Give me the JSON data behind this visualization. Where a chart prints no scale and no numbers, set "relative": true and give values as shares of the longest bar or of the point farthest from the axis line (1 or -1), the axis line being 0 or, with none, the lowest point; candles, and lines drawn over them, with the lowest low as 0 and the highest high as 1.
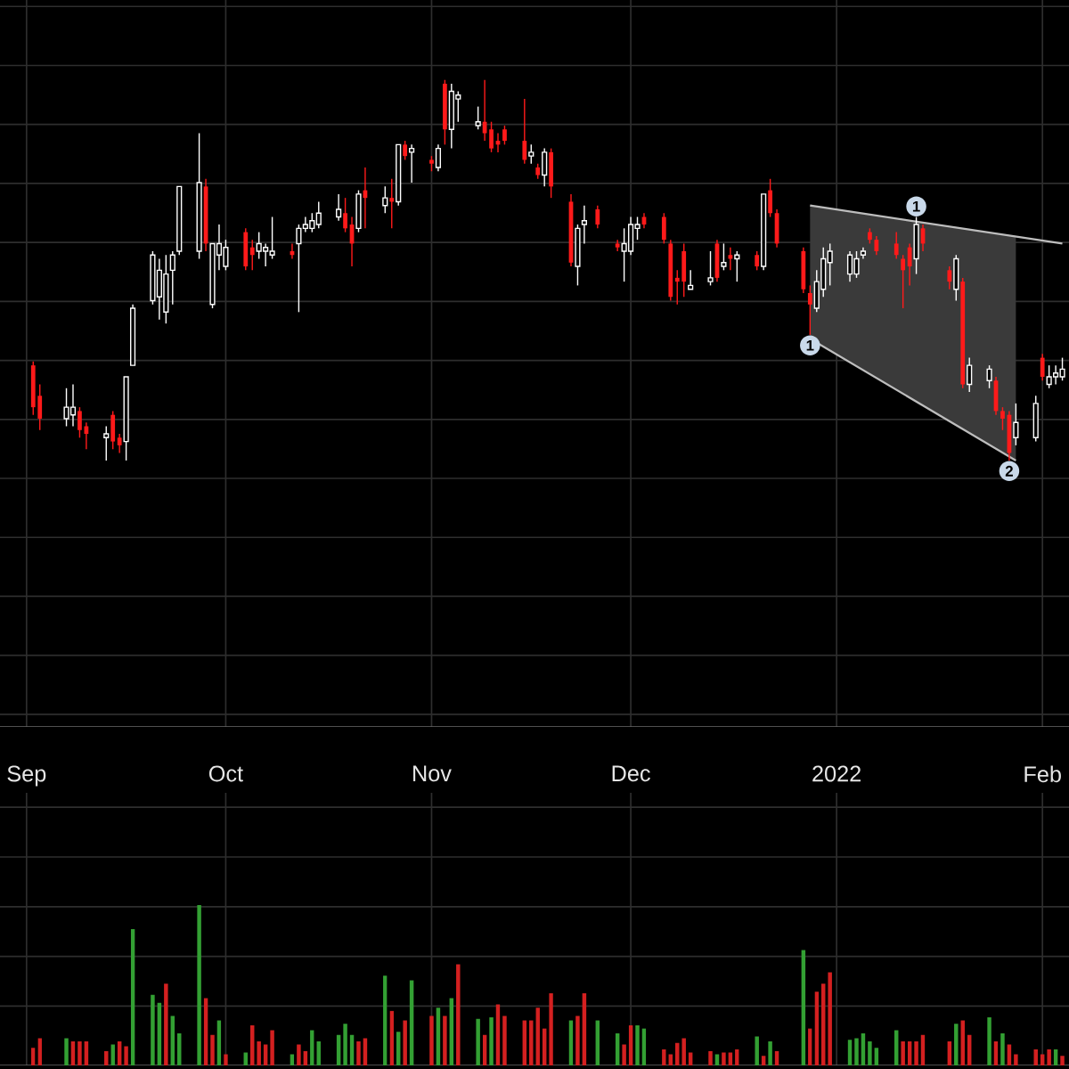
{
  "chart_data": [
    {
      "type": "candlestick",
      "relative": true,
      "grid": true,
      "tick_labels": "x",
      "x": [
        "2021-09-02",
        "2021-09-03",
        "2021-09-07",
        "2021-09-08",
        "2021-09-09",
        "2021-09-10",
        "2021-09-13",
        "2021-09-14",
        "2021-09-15",
        "2021-09-16",
        "2021-09-17",
        "2021-09-20",
        "2021-09-21",
        "2021-09-22",
        "2021-09-23",
        "2021-09-24",
        "2021-09-27",
        "2021-09-28",
        "2021-09-29",
        "2021-09-30",
        "2021-10-01",
        "2021-10-04",
        "2021-10-05",
        "2021-10-06",
        "2021-10-07",
        "2021-10-08",
        "2021-10-11",
        "2021-10-12",
        "2021-10-13",
        "2021-10-14",
        "2021-10-15",
        "2021-10-18",
        "2021-10-19",
        "2021-10-20",
        "2021-10-21",
        "2021-10-22",
        "2021-10-25",
        "2021-10-26",
        "2021-10-27",
        "2021-10-28",
        "2021-10-29",
        "2021-11-01",
        "2021-11-02",
        "2021-11-03",
        "2021-11-04",
        "2021-11-05",
        "2021-11-08",
        "2021-11-09",
        "2021-11-10",
        "2021-11-11",
        "2021-11-12",
        "2021-11-15",
        "2021-11-16",
        "2021-11-17",
        "2021-11-18",
        "2021-11-19",
        "2021-11-22",
        "2021-11-23",
        "2021-11-24",
        "2021-11-26",
        "2021-11-29",
        "2021-11-30",
        "2021-12-01",
        "2021-12-02",
        "2021-12-03",
        "2021-12-06",
        "2021-12-07",
        "2021-12-08",
        "2021-12-09",
        "2021-12-10",
        "2021-12-13",
        "2021-12-14",
        "2021-12-15",
        "2021-12-16",
        "2021-12-17",
        "2021-12-20",
        "2021-12-21",
        "2021-12-22",
        "2021-12-23",
        "2021-12-27",
        "2021-12-28",
        "2021-12-29",
        "2021-12-30",
        "2021-12-31",
        "2022-01-03",
        "2022-01-04",
        "2022-01-05",
        "2022-01-06",
        "2022-01-07",
        "2022-01-10",
        "2022-01-11",
        "2022-01-12",
        "2022-01-13",
        "2022-01-14",
        "2022-01-18",
        "2022-01-19",
        "2022-01-20",
        "2022-01-21",
        "2022-01-24",
        "2022-01-25",
        "2022-01-26",
        "2022-01-27",
        "2022-01-28",
        "2022-01-31",
        "2022-02-01",
        "2022-02-02",
        "2022-02-03",
        "2022-02-04"
      ],
      "xlim": [
        "2021-08-28",
        "2022-02-05"
      ],
      "xticks": [
        {
          "value": "2021-09-01",
          "label": "Sep"
        },
        {
          "value": "2021-10-01",
          "label": "Oct"
        },
        {
          "value": "2021-11-01",
          "label": "Nov"
        },
        {
          "value": "2021-12-01",
          "label": "Dec"
        },
        {
          "value": "2022-01-01",
          "label": "2022"
        },
        {
          "value": "2022-02-01",
          "label": "Feb"
        }
      ],
      "ohlc": [
        [
          0.25,
          0.26,
          0.12,
          0.14
        ],
        [
          0.17,
          0.2,
          0.08,
          0.11
        ],
        [
          0.11,
          0.19,
          0.09,
          0.14
        ],
        [
          0.12,
          0.2,
          0.09,
          0.14
        ],
        [
          0.13,
          0.14,
          0.06,
          0.08
        ],
        [
          0.09,
          0.1,
          0.03,
          0.07
        ],
        [
          0.06,
          0.09,
          0,
          0.07
        ],
        [
          0.12,
          0.13,
          0.03,
          0.05
        ],
        [
          0.06,
          0.07,
          0.02,
          0.04
        ],
        [
          0.05,
          0.22,
          0,
          0.22
        ],
        [
          0.25,
          0.41,
          0.25,
          0.4
        ],
        [
          0.42,
          0.55,
          0.41,
          0.54
        ],
        [
          0.43,
          0.53,
          0.37,
          0.5
        ],
        [
          0.39,
          0.54,
          0.36,
          0.49
        ],
        [
          0.5,
          0.55,
          0.41,
          0.54
        ],
        [
          0.55,
          0.72,
          0.54,
          0.72
        ],
        [
          0.55,
          0.86,
          0.53,
          0.73
        ],
        [
          0.72,
          0.74,
          0.55,
          0.57
        ],
        [
          0.41,
          0.57,
          0.4,
          0.57
        ],
        [
          0.54,
          0.62,
          0.5,
          0.57
        ],
        [
          0.51,
          0.58,
          0.5,
          0.56
        ],
        [
          0.6,
          0.61,
          0.5,
          0.51
        ],
        [
          0.56,
          0.58,
          0.5,
          0.54
        ],
        [
          0.55,
          0.6,
          0.53,
          0.57
        ],
        [
          0.55,
          0.57,
          0.51,
          0.56
        ],
        [
          0.54,
          0.64,
          0.53,
          0.55
        ],
        [
          0.55,
          0.57,
          0.53,
          0.54
        ],
        [
          0.57,
          0.62,
          0.39,
          0.61
        ],
        [
          0.61,
          0.64,
          0.6,
          0.62
        ],
        [
          0.61,
          0.65,
          0.6,
          0.63
        ],
        [
          0.62,
          0.68,
          0.61,
          0.65
        ],
        [
          0.64,
          0.7,
          0.63,
          0.66
        ],
        [
          0.65,
          0.69,
          0.6,
          0.61
        ],
        [
          0.62,
          0.64,
          0.51,
          0.57
        ],
        [
          0.61,
          0.71,
          0.6,
          0.7
        ],
        [
          0.71,
          0.77,
          0.61,
          0.69
        ],
        [
          0.67,
          0.72,
          0.65,
          0.69
        ],
        [
          0.69,
          0.74,
          0.61,
          0.68
        ],
        [
          0.68,
          0.83,
          0.67,
          0.83
        ],
        [
          0.83,
          0.84,
          0.79,
          0.8
        ],
        [
          0.81,
          0.83,
          0.73,
          0.82
        ],
        [
          0.79,
          0.8,
          0.76,
          0.78
        ],
        [
          0.77,
          0.83,
          0.76,
          0.82
        ],
        [
          0.99,
          1,
          0.83,
          0.87
        ],
        [
          0.87,
          0.99,
          0.82,
          0.97
        ],
        [
          0.95,
          0.97,
          0.89,
          0.96
        ],
        [
          0.88,
          0.93,
          0.87,
          0.89
        ],
        [
          0.89,
          1,
          0.84,
          0.86
        ],
        [
          0.87,
          0.89,
          0.81,
          0.82
        ],
        [
          0.84,
          0.86,
          0.81,
          0.83
        ],
        [
          0.87,
          0.88,
          0.83,
          0.84
        ],
        [
          0.84,
          0.95,
          0.78,
          0.79
        ],
        [
          0.8,
          0.83,
          0.78,
          0.81
        ],
        [
          0.77,
          0.78,
          0.74,
          0.75
        ],
        [
          0.75,
          0.82,
          0.72,
          0.81
        ],
        [
          0.81,
          0.82,
          0.69,
          0.72
        ],
        [
          0.68,
          0.7,
          0.51,
          0.52
        ],
        [
          0.51,
          0.62,
          0.46,
          0.61
        ],
        [
          0.62,
          0.67,
          0.57,
          0.63
        ],
        [
          0.66,
          0.67,
          0.61,
          0.62
        ],
        [
          0.57,
          0.58,
          0.55,
          0.56
        ],
        [
          0.55,
          0.61,
          0.47,
          0.57
        ],
        [
          0.55,
          0.64,
          0.54,
          0.62
        ],
        [
          0.61,
          0.64,
          0.58,
          0.62
        ],
        [
          0.64,
          0.65,
          0.61,
          0.62
        ],
        [
          0.64,
          0.65,
          0.57,
          0.58
        ],
        [
          0.57,
          0.58,
          0.42,
          0.43
        ],
        [
          0.48,
          0.5,
          0.41,
          0.47
        ],
        [
          0.55,
          0.57,
          0.43,
          0.47
        ],
        [
          0.45,
          0.5,
          0.45,
          0.46
        ],
        [
          0.47,
          0.55,
          0.46,
          0.48
        ],
        [
          0.57,
          0.58,
          0.47,
          0.48
        ],
        [
          0.51,
          0.57,
          0.5,
          0.52
        ],
        [
          0.54,
          0.56,
          0.5,
          0.53
        ],
        [
          0.53,
          0.55,
          0.47,
          0.54
        ],
        [
          0.54,
          0.55,
          0.5,
          0.51
        ],
        [
          0.51,
          0.7,
          0.5,
          0.7
        ],
        [
          0.71,
          0.74,
          0.64,
          0.65
        ],
        [
          0.65,
          0.66,
          0.56,
          0.57
        ],
        [
          0.55,
          0.56,
          0.44,
          0.45
        ],
        [
          0.44,
          0.46,
          0.33,
          0.41
        ],
        [
          0.4,
          0.5,
          0.39,
          0.47
        ],
        [
          0.45,
          0.56,
          0.43,
          0.53
        ],
        [
          0.52,
          0.57,
          0.46,
          0.55
        ],
        [
          0.49,
          0.55,
          0.47,
          0.54
        ],
        [
          0.49,
          0.55,
          0.48,
          0.53
        ],
        [
          0.54,
          0.56,
          0.53,
          0.55
        ],
        [
          0.6,
          0.61,
          0.57,
          0.58
        ],
        [
          0.58,
          0.59,
          0.54,
          0.55
        ],
        [
          0.57,
          0.6,
          0.53,
          0.54
        ],
        [
          0.53,
          0.54,
          0.4,
          0.5
        ],
        [
          0.56,
          0.57,
          0.46,
          0.51
        ],
        [
          0.53,
          0.64,
          0.49,
          0.62
        ],
        [
          0.61,
          0.62,
          0.55,
          0.57
        ],
        [
          0.5,
          0.51,
          0.45,
          0.47
        ],
        [
          0.45,
          0.54,
          0.42,
          0.53
        ],
        [
          0.47,
          0.48,
          0.19,
          0.2
        ],
        [
          0.2,
          0.27,
          0.18,
          0.25
        ],
        [
          0.21,
          0.25,
          0.19,
          0.24
        ],
        [
          0.21,
          0.22,
          0.12,
          0.13
        ],
        [
          0.13,
          0.14,
          0.08,
          0.11
        ],
        [
          0.12,
          0.13,
          0,
          0.02
        ],
        [
          0.06,
          0.15,
          0.04,
          0.1
        ],
        [
          0.06,
          0.17,
          0.05,
          0.15
        ],
        [
          0.27,
          0.28,
          0.21,
          0.22
        ],
        [
          0.2,
          0.25,
          0.19,
          0.22
        ],
        [
          0.22,
          0.25,
          0.2,
          0.23
        ],
        [
          0.22,
          0.27,
          0.21,
          0.24
        ]
      ],
      "series": [
        {
          "type": "line",
          "color": "#bdbdbd",
          "x": [
            "2021-12-28",
            "2022-02-04"
          ],
          "values": [
            0.67,
            0.57
          ]
        },
        {
          "type": "line",
          "color": "#bdbdbd",
          "x": [
            "2021-12-28",
            "2022-01-28"
          ],
          "values": [
            0.32,
            0
          ],
          "lower": [
            0.32,
            0
          ],
          "upper": [
            0.67,
            0.59
          ]
        }
      ],
      "annotations": [
        {
          "text": "1",
          "x": "2021-12-28",
          "y": 0.33
        },
        {
          "text": "1",
          "x": "2022-01-13",
          "y": 0.64
        },
        {
          "text": "2",
          "x": "2022-01-27",
          "y": 0
        }
      ]
    },
    {
      "type": "bar",
      "relative": true,
      "grid": true,
      "tick_labels": false,
      "x": [
        "2021-09-02",
        "2021-09-03",
        "2021-09-07",
        "2021-09-08",
        "2021-09-09",
        "2021-09-10",
        "2021-09-13",
        "2021-09-14",
        "2021-09-15",
        "2021-09-16",
        "2021-09-17",
        "2021-09-20",
        "2021-09-21",
        "2021-09-22",
        "2021-09-23",
        "2021-09-24",
        "2021-09-27",
        "2021-09-28",
        "2021-09-29",
        "2021-09-30",
        "2021-10-01",
        "2021-10-04",
        "2021-10-05",
        "2021-10-06",
        "2021-10-07",
        "2021-10-08",
        "2021-10-11",
        "2021-10-12",
        "2021-10-13",
        "2021-10-14",
        "2021-10-15",
        "2021-10-18",
        "2021-10-19",
        "2021-10-20",
        "2021-10-21",
        "2021-10-22",
        "2021-10-25",
        "2021-10-26",
        "2021-10-27",
        "2021-10-28",
        "2021-10-29",
        "2021-11-01",
        "2021-11-02",
        "2021-11-03",
        "2021-11-04",
        "2021-11-05",
        "2021-11-08",
        "2021-11-09",
        "2021-11-10",
        "2021-11-11",
        "2021-11-12",
        "2021-11-15",
        "2021-11-16",
        "2021-11-17",
        "2021-11-18",
        "2021-11-19",
        "2021-11-22",
        "2021-11-23",
        "2021-11-24",
        "2021-11-26",
        "2021-11-29",
        "2021-11-30",
        "2021-12-01",
        "2021-12-02",
        "2021-12-03",
        "2021-12-06",
        "2021-12-07",
        "2021-12-08",
        "2021-12-09",
        "2021-12-10",
        "2021-12-13",
        "2021-12-14",
        "2021-12-15",
        "2021-12-16",
        "2021-12-17",
        "2021-12-20",
        "2021-12-21",
        "2021-12-22",
        "2021-12-23",
        "2021-12-27",
        "2021-12-28",
        "2021-12-29",
        "2021-12-30",
        "2021-12-31",
        "2022-01-03",
        "2022-01-04",
        "2022-01-05",
        "2022-01-06",
        "2022-01-07",
        "2022-01-10",
        "2022-01-11",
        "2022-01-12",
        "2022-01-13",
        "2022-01-14",
        "2022-01-18",
        "2022-01-19",
        "2022-01-20",
        "2022-01-21",
        "2022-01-24",
        "2022-01-25",
        "2022-01-26",
        "2022-01-27",
        "2022-01-28",
        "2022-01-31",
        "2022-02-01",
        "2022-02-02",
        "2022-02-03",
        "2022-02-04"
      ],
      "xlim": [
        "2021-08-28",
        "2022-02-05"
      ],
      "xticks": [
        {
          "value": "2021-09-01",
          "label": null
        },
        {
          "value": "2021-10-01",
          "label": null
        },
        {
          "value": "2021-11-01",
          "label": null
        },
        {
          "value": "2021-12-01",
          "label": null
        },
        {
          "value": "2022-01-01",
          "label": null
        },
        {
          "value": "2022-02-01",
          "label": null
        }
      ],
      "values": [
        0.11,
        0.17,
        0.17,
        0.15,
        0.15,
        0.15,
        0.09,
        0.13,
        0.15,
        0.12,
        0.85,
        0.44,
        0.39,
        0.51,
        0.31,
        0.2,
        1,
        0.42,
        0.19,
        0.28,
        0.07,
        0.08,
        0.25,
        0.15,
        0.13,
        0.22,
        0.07,
        0.13,
        0.09,
        0.22,
        0.15,
        0.19,
        0.26,
        0.19,
        0.15,
        0.17,
        0.56,
        0.34,
        0.21,
        0.28,
        0.53,
        0.31,
        0.36,
        0.31,
        0.42,
        0.63,
        0.29,
        0.19,
        0.3,
        0.38,
        0.31,
        0.28,
        0.28,
        0.36,
        0.23,
        0.45,
        0.28,
        0.31,
        0.45,
        0.28,
        0.2,
        0.13,
        0.25,
        0.25,
        0.23,
        0.1,
        0.07,
        0.14,
        0.17,
        0.08,
        0.09,
        0.07,
        0.08,
        0.08,
        0.1,
        0.18,
        0.06,
        0.15,
        0.09,
        0.72,
        0.23,
        0.46,
        0.51,
        0.58,
        0.16,
        0.17,
        0.2,
        0.15,
        0.11,
        0.22,
        0.15,
        0.15,
        0.15,
        0.19,
        0.15,
        0.26,
        0.28,
        0.19,
        0.3,
        0.15,
        0.2,
        0.13,
        0.07,
        0.1,
        0.07,
        0.1,
        0.1,
        0.06
      ],
      "colors": [
        "#d42020",
        "#d42020",
        "#33a033",
        "#d42020",
        "#d42020",
        "#d42020",
        "#d42020",
        "#33a033",
        "#d42020",
        "#d42020",
        "#33a033",
        "#33a033",
        "#33a033",
        "#d42020",
        "#33a033",
        "#33a033",
        "#33a033",
        "#d42020",
        "#d42020",
        "#33a033",
        "#d42020",
        "#33a033",
        "#d42020",
        "#d42020",
        "#d42020",
        "#d42020",
        "#33a033",
        "#d42020",
        "#d42020",
        "#33a033",
        "#33a033",
        "#33a033",
        "#33a033",
        "#33a033",
        "#d42020",
        "#d42020",
        "#33a033",
        "#d42020",
        "#33a033",
        "#d42020",
        "#33a033",
        "#d42020",
        "#33a033",
        "#d42020",
        "#33a033",
        "#d42020",
        "#33a033",
        "#d42020",
        "#33a033",
        "#d42020",
        "#d42020",
        "#d42020",
        "#d42020",
        "#d42020",
        "#d42020",
        "#d42020",
        "#33a033",
        "#d42020",
        "#d42020",
        "#33a033",
        "#33a033",
        "#d42020",
        "#d42020",
        "#33a033",
        "#33a033",
        "#d42020",
        "#d42020",
        "#d42020",
        "#d42020",
        "#d42020",
        "#d42020",
        "#33a033",
        "#d42020",
        "#d42020",
        "#d42020",
        "#33a033",
        "#d42020",
        "#33a033",
        "#d42020",
        "#33a033",
        "#d42020",
        "#d42020",
        "#d42020",
        "#d42020",
        "#33a033",
        "#33a033",
        "#33a033",
        "#33a033",
        "#33a033",
        "#33a033",
        "#d42020",
        "#d42020",
        "#d42020",
        "#d42020",
        "#d42020",
        "#33a033",
        "#d42020",
        "#d42020",
        "#33a033",
        "#d42020",
        "#33a033",
        "#d42020",
        "#d42020",
        "#d42020",
        "#d42020",
        "#d42020",
        "#33a033",
        "#d42020"
      ]
    }
  ]
}
